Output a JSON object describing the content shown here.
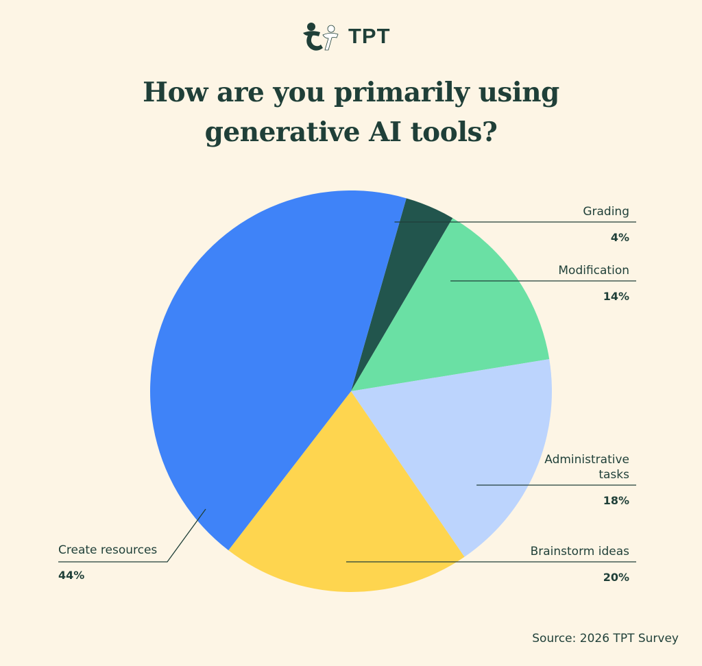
{
  "logo": {
    "text": "TPT"
  },
  "title": {
    "line1": "How are you primarily using",
    "line2": "generative AI tools?"
  },
  "source": "Source: 2026 TPT Survey",
  "chart_data": {
    "type": "pie",
    "title": "How are you primarily using generative AI tools?",
    "slices": [
      {
        "label": "Grading",
        "value": 4,
        "display": "4%",
        "color": "#22554d"
      },
      {
        "label": "Modification",
        "value": 14,
        "display": "14%",
        "color": "#6ae0a4"
      },
      {
        "label": "Administrative tasks",
        "value": 18,
        "display": "18%",
        "color": "#bcd4fd"
      },
      {
        "label": "Brainstorm ideas",
        "value": 20,
        "display": "20%",
        "color": "#fed54f"
      },
      {
        "label": "Create resources",
        "value": 44,
        "display": "44%",
        "color": "#3f83f8"
      }
    ]
  }
}
